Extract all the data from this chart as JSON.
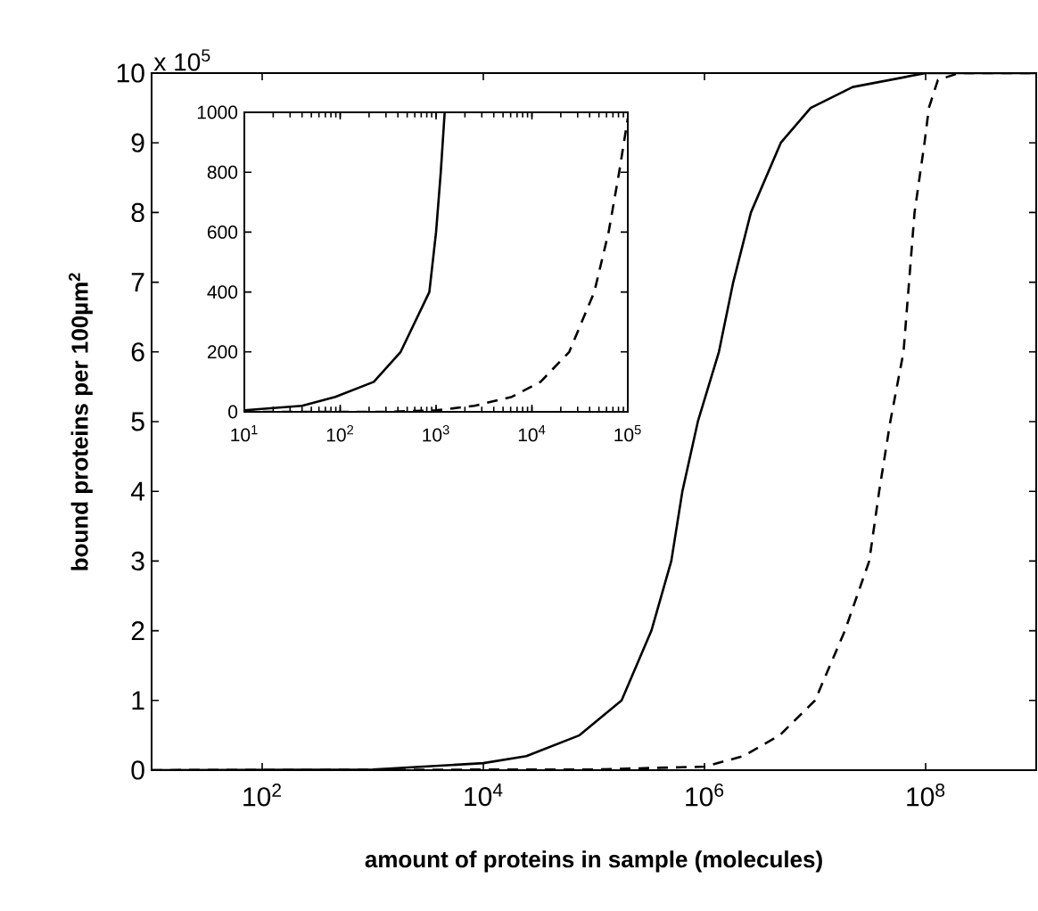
{
  "chart_data": [
    {
      "type": "line",
      "xlabel": "amount of proteins in sample (molecules)",
      "ylabel": "bound proteins per 100µm$^{2}$",
      "annotations": [
        "x 10$^{5}$"
      ],
      "log": "x",
      "xlim": [
        10,
        1000000000
      ],
      "ylim": [
        0,
        10
      ],
      "xticks": [
        {
          "value": 100,
          "label": "10$^{2}$"
        },
        {
          "value": 10000,
          "label": "10$^{4}$"
        },
        {
          "value": 1000000,
          "label": "10$^{6}$"
        },
        {
          "value": 100000000,
          "label": "10$^{8}$"
        }
      ],
      "yticks": [
        0,
        1,
        2,
        3,
        4,
        5,
        6,
        7,
        8,
        9,
        10
      ],
      "series": [
        {
          "color": "#000000",
          "line_style": "solid",
          "x": [
            10,
            1000,
            10000,
            24500,
            74100,
            178000,
            331000,
            501000,
            631000,
            871000,
            1350000,
            1820000,
            2630000,
            4900000,
            9120000,
            21900000,
            100000000,
            1000000000
          ],
          "values": [
            0,
            0.01,
            0.1,
            0.2,
            0.5,
            1,
            2,
            3,
            4,
            5,
            6,
            7,
            8,
            9,
            9.5,
            9.8,
            10,
            10
          ]
        },
        {
          "color": "#000000",
          "line_style": "dashed",
          "x": [
            10,
            100000,
            1000000,
            2240000,
            4790000,
            10000000,
            18600000,
            30900000,
            38000000,
            47900000,
            63100000,
            70800000,
            79400000,
            97700000,
            107000000,
            129000000,
            200000000,
            1000000000
          ],
          "values": [
            0,
            0.01,
            0.05,
            0.2,
            0.5,
            1,
            2,
            3,
            4,
            5,
            6,
            7,
            8,
            9,
            9.5,
            9.9,
            10,
            10
          ]
        }
      ]
    },
    {
      "type": "line",
      "log": "x",
      "xlim": [
        10,
        100000
      ],
      "ylim": [
        0,
        1000
      ],
      "xticks": [
        {
          "value": 10,
          "label": "10$^{1}$"
        },
        {
          "value": 100,
          "label": "10$^{2}$"
        },
        {
          "value": 1000,
          "label": "10$^{3}$"
        },
        {
          "value": 10000,
          "label": "10$^{4}$"
        },
        {
          "value": 100000,
          "label": "10$^{5}$"
        }
      ],
      "yticks": [
        0,
        200,
        400,
        600,
        800,
        1000
      ],
      "series": [
        {
          "color": "#000000",
          "line_style": "solid",
          "x": [
            10,
            40,
            89,
            224,
            427,
            851,
            1000,
            1120,
            1230
          ],
          "values": [
            5,
            20,
            50,
            100,
            200,
            400,
            600,
            800,
            1000
          ]
        },
        {
          "color": "#000000",
          "line_style": "dashed",
          "x": [
            10,
            316,
            1000,
            2510,
            6170,
            12300,
            24500,
            44700,
            63100,
            81300,
            100000
          ],
          "values": [
            0,
            0,
            5,
            20,
            50,
            100,
            200,
            400,
            600,
            800,
            980
          ]
        }
      ]
    }
  ]
}
